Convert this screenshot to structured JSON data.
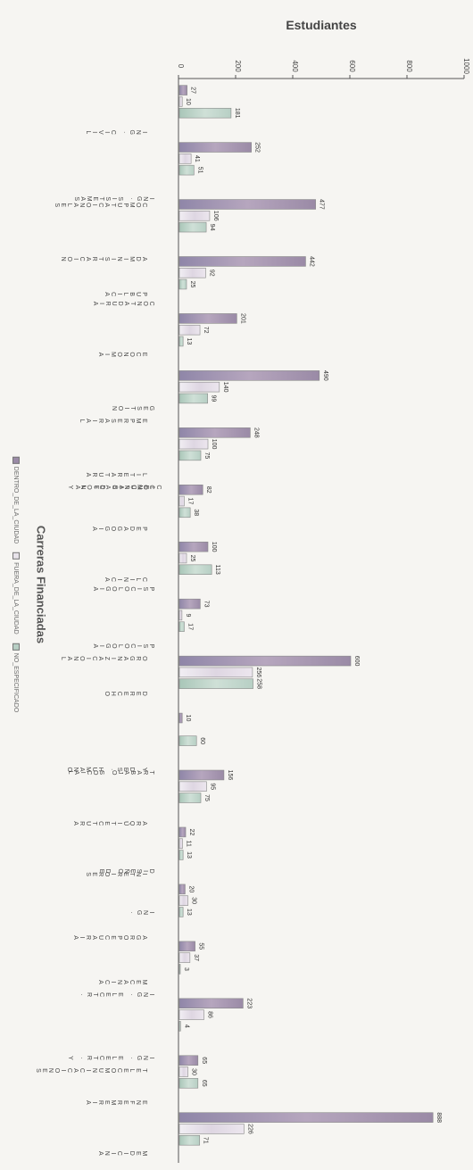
{
  "chart_data": {
    "type": "bar",
    "orientation": "horizontal",
    "title": "Estudiantes",
    "legend_title": "Carreras Financiadas",
    "xlim": [
      0,
      1000
    ],
    "x_ticks": [
      0,
      200,
      400,
      600,
      800,
      1000
    ],
    "categories": [
      "ING. CIVIL",
      "ING. SISTEMAS COMPUTACIONALES",
      "ADMINISTRACION",
      "CONTADURIA PUBLICA",
      "ECONOMIA",
      "GESTION EMPRESARIAL",
      "CIENCIAS DE LA COMUNICACION Y LITERATURA",
      "PEDAGOGIA",
      "PSICOLOGIA CLINICA",
      "PSICOLOGIA ORGANIZACIONAL",
      "DERECHO",
      "TRABAJO SOCIAL Y DES. HUMANO",
      "ARQUITECTURA",
      "DISEÑO DE INTERIORES",
      "ING. AGROPECUARIA",
      "ING. ELECTR. MECANICA",
      "ING. ELECTR. Y TELECOMUNICACIONES",
      "ENFERMERIA",
      "MEDICINA"
    ],
    "series": [
      {
        "name": "DENTRO_DE_LA_CIUDAD",
        "color": "#9a8aa6",
        "values": [
          27,
          252,
          477,
          442,
          201,
          490,
          248,
          82,
          100,
          73,
          600,
          10,
          156,
          22,
          20,
          55,
          223,
          65,
          888
        ]
      },
      {
        "name": "FUERA_DE_LA_CIUDAD",
        "color": "#e8e3ea",
        "values": [
          10,
          41,
          106,
          92,
          72,
          140,
          100,
          17,
          25,
          9,
          256,
          null,
          95,
          11,
          30,
          37,
          86,
          30,
          226
        ]
      },
      {
        "name": "NO_ESPECIFICADO",
        "color": "#b7cfc4",
        "values": [
          181,
          51,
          94,
          25,
          13,
          99,
          75,
          38,
          113,
          17,
          258,
          60,
          75,
          13,
          13,
          3,
          4,
          65,
          71
        ]
      }
    ],
    "value_labels": [
      [
        "27",
        "10",
        "181"
      ],
      [
        "252",
        "41",
        "51"
      ],
      [
        "477",
        "106",
        "94"
      ],
      [
        "442",
        "92",
        "25"
      ],
      [
        "201",
        "72",
        "13"
      ],
      [
        "490",
        "140",
        "99"
      ],
      [
        "248",
        "100",
        "75"
      ],
      [
        "82",
        "17",
        "38"
      ],
      [
        "100",
        "25",
        "113"
      ],
      [
        "73",
        "9",
        "17"
      ],
      [
        "600",
        "256",
        "258"
      ],
      [
        "10",
        "",
        "60"
      ],
      [
        "156",
        "95",
        "75"
      ],
      [
        "22",
        "11",
        "13"
      ],
      [
        "20",
        "30",
        "13"
      ],
      [
        "55",
        "37",
        "3"
      ],
      [
        "223",
        "86",
        "4"
      ],
      [
        "65",
        "30",
        "65"
      ],
      [
        "888",
        "226",
        "71"
      ]
    ],
    "legend_position": "left"
  }
}
